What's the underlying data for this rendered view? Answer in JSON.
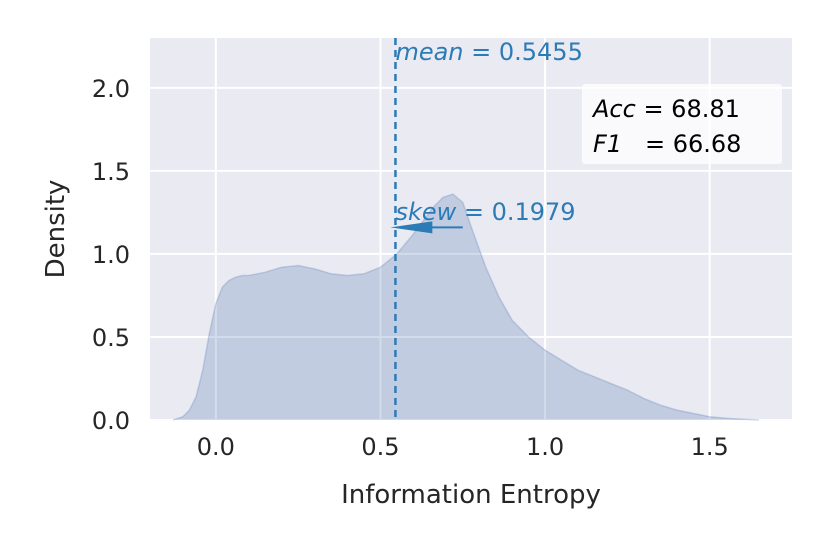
{
  "chart_data": {
    "type": "area",
    "title": "",
    "xlabel": "Information Entropy",
    "ylabel": "Density",
    "xlim": [
      -0.2,
      1.75
    ],
    "ylim": [
      0,
      2.3
    ],
    "xticks": [
      0.0,
      0.5,
      1.0,
      1.5
    ],
    "xtick_labels": [
      "0.0",
      "0.5",
      "1.0",
      "1.5"
    ],
    "yticks": [
      0.0,
      0.5,
      1.0,
      1.5,
      2.0
    ],
    "ytick_labels": [
      "0.0",
      "0.5",
      "1.0",
      "1.5",
      "2.0"
    ],
    "grid": true,
    "series": [
      {
        "x": [
          -0.13,
          -0.1,
          -0.08,
          -0.06,
          -0.04,
          -0.02,
          0.0,
          0.02,
          0.04,
          0.06,
          0.08,
          0.1,
          0.15,
          0.2,
          0.25,
          0.3,
          0.35,
          0.4,
          0.45,
          0.5,
          0.55,
          0.6,
          0.63,
          0.66,
          0.69,
          0.72,
          0.75,
          0.78,
          0.82,
          0.86,
          0.9,
          0.95,
          1.0,
          1.05,
          1.1,
          1.15,
          1.2,
          1.25,
          1.3,
          1.35,
          1.4,
          1.45,
          1.5,
          1.55,
          1.6,
          1.65
        ],
        "values": [
          0.0,
          0.02,
          0.06,
          0.14,
          0.3,
          0.52,
          0.7,
          0.8,
          0.84,
          0.86,
          0.87,
          0.87,
          0.89,
          0.92,
          0.93,
          0.91,
          0.88,
          0.87,
          0.88,
          0.92,
          1.0,
          1.12,
          1.2,
          1.28,
          1.34,
          1.36,
          1.31,
          1.14,
          0.92,
          0.74,
          0.6,
          0.5,
          0.42,
          0.36,
          0.3,
          0.26,
          0.22,
          0.18,
          0.13,
          0.09,
          0.06,
          0.04,
          0.02,
          0.01,
          0.005,
          0.0
        ]
      }
    ],
    "colors": {
      "fill": "#4c72b0",
      "annotation": "#2c7bb6",
      "background": "#eaeaf2",
      "grid": "#ffffff"
    },
    "mean": {
      "x": 0.5455,
      "label_name": "mean",
      "label_eq": " = 0.5455"
    },
    "skew": {
      "label_name": "skew",
      "label_eq": " = 0.1979",
      "arrow_y": 1.16,
      "arrow_x_start": 0.75,
      "arrow_x_end": 0.53
    },
    "stats": {
      "acc_name": "Acc",
      "acc_eq": " = 68.81",
      "f1_name": "F1",
      "f1_eq": "   = 66.68",
      "placement": "top-right"
    }
  }
}
